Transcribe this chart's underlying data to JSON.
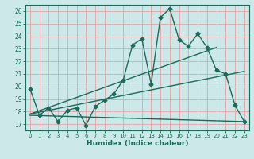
{
  "title": "",
  "xlabel": "Humidex (Indice chaleur)",
  "background_color": "#cce8e8",
  "line_color": "#1a6b5a",
  "grid_color": "#e8a0a0",
  "xlim": [
    -0.5,
    23.5
  ],
  "ylim": [
    16.5,
    26.5
  ],
  "xticks": [
    0,
    1,
    2,
    3,
    4,
    5,
    6,
    7,
    8,
    9,
    10,
    11,
    12,
    13,
    14,
    15,
    16,
    17,
    18,
    19,
    20,
    21,
    22,
    23
  ],
  "yticks": [
    17,
    18,
    19,
    20,
    21,
    22,
    23,
    24,
    25,
    26
  ],
  "line1_x": [
    0,
    1,
    2,
    3,
    4,
    5,
    6,
    7,
    8,
    9,
    10,
    11,
    12,
    13,
    14,
    15,
    16,
    17,
    18,
    19,
    20,
    21,
    22,
    23
  ],
  "line1_y": [
    19.8,
    17.7,
    18.3,
    17.2,
    18.1,
    18.3,
    16.9,
    18.4,
    18.9,
    19.4,
    20.5,
    23.3,
    23.8,
    20.2,
    25.5,
    26.2,
    23.7,
    23.2,
    24.2,
    23.1,
    21.3,
    21.0,
    18.5,
    17.2
  ],
  "line2_x": [
    0,
    23
  ],
  "line2_y": [
    17.7,
    17.2
  ],
  "line3_x": [
    0,
    20
  ],
  "line3_y": [
    17.8,
    23.1
  ],
  "line4_x": [
    0,
    23
  ],
  "line4_y": [
    17.8,
    21.2
  ],
  "marker": "D",
  "markersize": 2.5,
  "linewidth": 1.0
}
